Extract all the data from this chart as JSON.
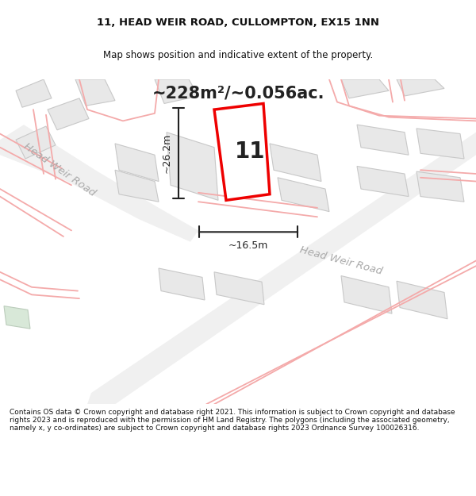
{
  "title_line1": "11, HEAD WEIR ROAD, CULLOMPTON, EX15 1NN",
  "title_line2": "Map shows position and indicative extent of the property.",
  "area_text": "~228m²/~0.056ac.",
  "property_number": "11",
  "dim_height": "~26.2m",
  "dim_width": "~16.5m",
  "road_label1": "Head Weir Road",
  "road_label2": "Head Weir Road",
  "footer_text": "Contains OS data © Crown copyright and database right 2021. This information is subject to Crown copyright and database rights 2023 and is reproduced with the permission of HM Land Registry. The polygons (including the associated geometry, namely x, y co-ordinates) are subject to Crown copyright and database rights 2023 Ordnance Survey 100026316.",
  "bg_color": "#ffffff",
  "map_bg": "#ffffff",
  "building_fill": "#e8e8e8",
  "building_edge": "#c8c8c8",
  "road_fill": "#f0f0f0",
  "property_edge": "#ee0000",
  "property_fill": "#ffffff",
  "dim_color": "#222222",
  "road_line_color": "#f4aaaa",
  "title_color": "#111111",
  "footer_color": "#111111",
  "road_band_color": "#f0f0f0"
}
